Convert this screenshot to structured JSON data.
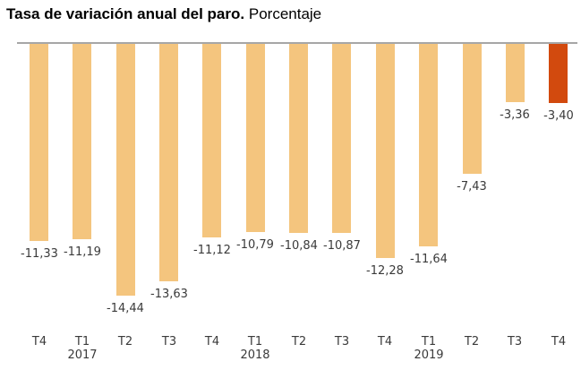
{
  "title": {
    "bold": "Tasa de variación anual del paro.",
    "regular": "Porcentaje"
  },
  "chart_data": {
    "type": "bar",
    "title": "Tasa de variación anual del paro. Porcentaje",
    "categories": [
      "T4",
      "T1",
      "T2",
      "T3",
      "T4",
      "T1",
      "T2",
      "T3",
      "T4",
      "T1",
      "T2",
      "T3",
      "T4"
    ],
    "year_labels": [
      {
        "index": 1,
        "label": "2017"
      },
      {
        "index": 5,
        "label": "2018"
      },
      {
        "index": 9,
        "label": "2019"
      }
    ],
    "values": [
      -11.33,
      -11.19,
      -14.44,
      -13.63,
      -11.12,
      -10.79,
      -10.84,
      -10.87,
      -12.28,
      -11.64,
      -7.43,
      -3.36,
      -3.4
    ],
    "value_labels": [
      "-11,33",
      "-11,19",
      "-14,44",
      "-13,63",
      "-11,12",
      "-10,79",
      "-10,84",
      "-10,87",
      "-12,28",
      "-11,64",
      "-7,43",
      "-3,36",
      "-3,40"
    ],
    "xlabel": "",
    "ylabel": "",
    "ylim": [
      -15,
      0
    ],
    "grid": false,
    "legend": false,
    "bar_color": "#f4c57e",
    "highlight_color": "#d24a0e",
    "highlight_index": 12,
    "axis_line_color": "#a6a6a6",
    "label_color": "#3a3a3a"
  }
}
